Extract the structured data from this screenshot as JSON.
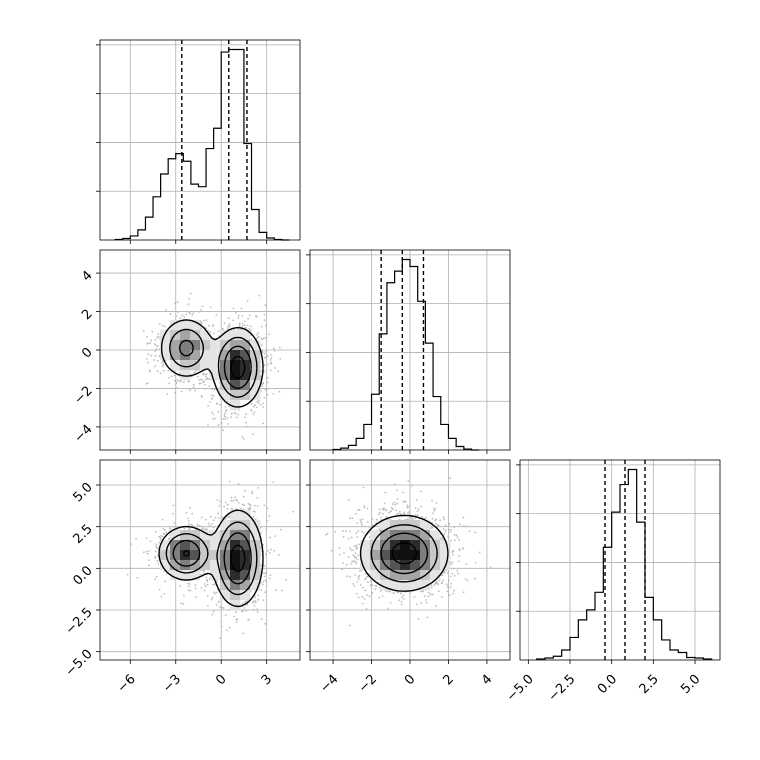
{
  "chart_data": {
    "type": "corner",
    "grid": true,
    "quantiles": [
      0.16,
      0.5,
      0.84
    ],
    "parameters": [
      {
        "xlim": [
          -8,
          5.2
        ],
        "ticks": [
          -6,
          -3,
          0,
          3
        ],
        "tick_labels": [
          "−6",
          "−3",
          "0",
          "3"
        ],
        "quantile_values": [
          -2.6,
          0.5,
          1.7
        ],
        "hist_edges": [
          -7.0,
          -6.5,
          -6.0,
          -5.5,
          -5.0,
          -4.5,
          -4.0,
          -3.5,
          -3.0,
          -2.5,
          -2.0,
          -1.5,
          -1.0,
          -0.5,
          0.0,
          0.5,
          1.0,
          1.5,
          2.0,
          2.5,
          3.0,
          3.5,
          4.0,
          4.5
        ],
        "hist_counts": [
          1,
          3,
          8,
          20,
          45,
          85,
          130,
          160,
          170,
          155,
          110,
          105,
          180,
          220,
          370,
          375,
          375,
          190,
          60,
          15,
          4,
          1,
          0
        ]
      },
      {
        "xlim": [
          -5.2,
          5.2
        ],
        "ticks": [
          -4,
          -2,
          0,
          2,
          4
        ],
        "tick_labels": [
          "−4",
          "−2",
          "0",
          "2",
          "4"
        ],
        "y_tick_labels": [
          "4",
          "2",
          "0",
          "−2",
          "−4"
        ],
        "quantile_values": [
          -1.5,
          -0.4,
          0.7
        ],
        "hist_edges": [
          -4.0,
          -3.6,
          -3.2,
          -2.8,
          -2.4,
          -2.0,
          -1.6,
          -1.2,
          -0.8,
          -0.4,
          0.0,
          0.4,
          0.8,
          1.2,
          1.6,
          2.0,
          2.4,
          2.8,
          3.2,
          3.6
        ],
        "hist_counts": [
          2,
          8,
          20,
          50,
          110,
          240,
          500,
          720,
          770,
          820,
          790,
          640,
          460,
          230,
          110,
          50,
          15,
          4,
          0
        ]
      },
      {
        "xlim": [
          -5.5,
          6.5
        ],
        "ticks": [
          -5.0,
          -2.5,
          0.0,
          2.5,
          5.0
        ],
        "tick_labels": [
          "−5.0",
          "−2.5",
          "0.0",
          "2.5",
          "5.0"
        ],
        "y_tick_labels": [
          "5.0",
          "2.5",
          "0.0",
          "−2.5",
          "−5.0"
        ],
        "quantile_values": [
          -0.4,
          0.8,
          2.0
        ],
        "hist_edges": [
          -4.5,
          -4.0,
          -3.5,
          -3.0,
          -2.5,
          -2.0,
          -1.5,
          -1.0,
          -0.5,
          0.0,
          0.5,
          1.0,
          1.5,
          2.0,
          2.5,
          3.0,
          3.5,
          4.0,
          4.5,
          5.0,
          5.5,
          6.0
        ],
        "hist_counts": [
          4,
          8,
          15,
          40,
          90,
          160,
          200,
          270,
          450,
          590,
          700,
          760,
          550,
          250,
          160,
          80,
          40,
          30,
          10,
          8,
          4
        ]
      }
    ],
    "pairs": [
      {
        "x": 0,
        "y": 1,
        "clusters": [
          {
            "mean": [
              -2.3,
              0.1
            ],
            "sd": [
              0.9,
              0.8
            ],
            "weight": 0.36
          },
          {
            "mean": [
              1.1,
              -0.9
            ],
            "sd": [
              0.8,
              1.0
            ],
            "weight": 0.64
          }
        ]
      },
      {
        "x": 0,
        "y": 2,
        "clusters": [
          {
            "mean": [
              -2.3,
              0.9
            ],
            "sd": [
              0.9,
              0.8
            ],
            "weight": 0.36
          },
          {
            "mean": [
              1.1,
              0.6
            ],
            "sd": [
              0.8,
              1.4
            ],
            "weight": 0.64
          }
        ]
      },
      {
        "x": 1,
        "y": 2,
        "clusters": [
          {
            "mean": [
              -0.3,
              0.9
            ],
            "sd": [
              1.1,
              1.1
            ],
            "weight": 1.0
          }
        ]
      }
    ]
  }
}
